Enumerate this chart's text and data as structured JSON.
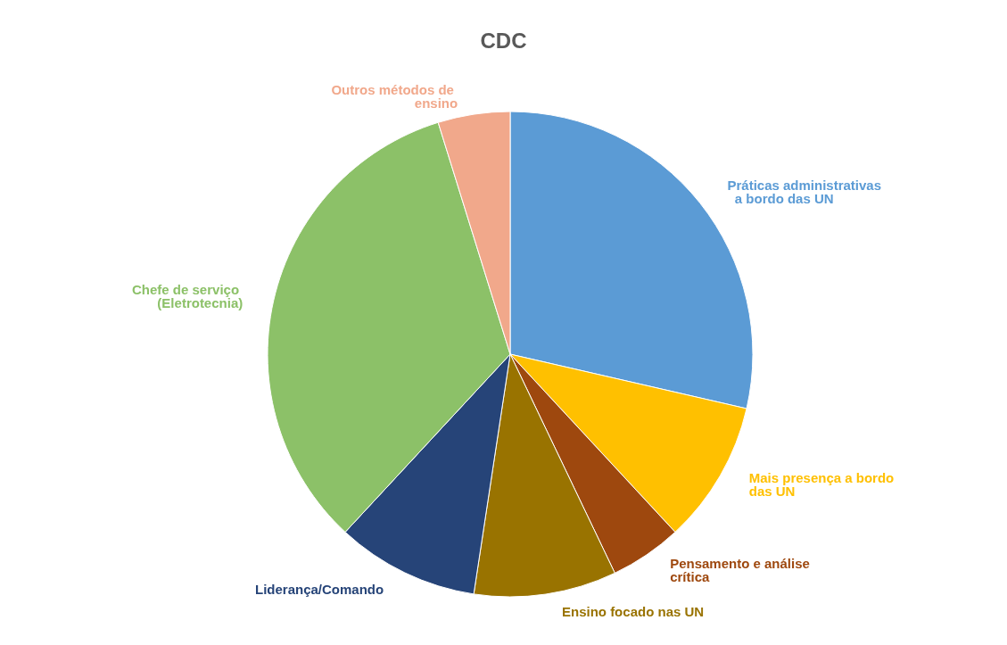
{
  "chart_data": {
    "type": "pie",
    "title": "CDC",
    "categories": [
      "Práticas administrativas  a bordo das UN",
      "Mais presença a bordo das UN",
      "Pensamento e análise crítica",
      "Ensino focado nas UN",
      "Liderança/Comando",
      "Chefe de serviço (Eletrotecnia)",
      "Outros métodos de ensino"
    ],
    "values": [
      28.6,
      9.5,
      4.8,
      9.5,
      9.5,
      33.3,
      4.8
    ],
    "colors": [
      "#5b9bd5",
      "#ffc000",
      "#9e480e",
      "#997300",
      "#264478",
      "#8cc168",
      "#f1a88b"
    ],
    "legend": false
  }
}
